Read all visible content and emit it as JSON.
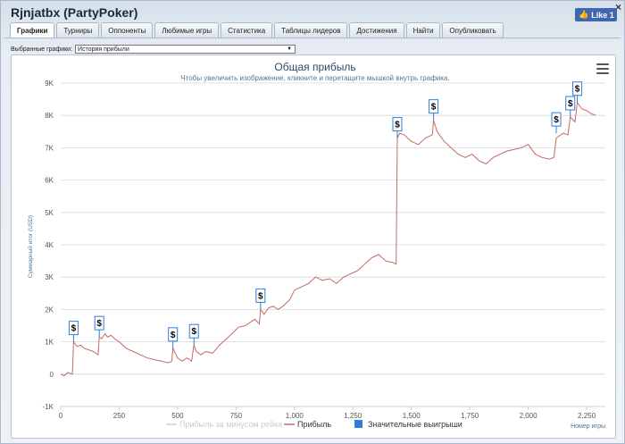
{
  "window": {
    "title": "Rjnjatbx (PartyPoker)",
    "close_label": "×",
    "like_label": "Like 1"
  },
  "tabs": [
    {
      "label": "Графики",
      "active": true
    },
    {
      "label": "Турниры",
      "active": false
    },
    {
      "label": "Оппоненты",
      "active": false
    },
    {
      "label": "Любимые игры",
      "active": false
    },
    {
      "label": "Статистика",
      "active": false
    },
    {
      "label": "Таблицы лидеров",
      "active": false
    },
    {
      "label": "Достижения",
      "active": false
    },
    {
      "label": "Найти",
      "active": false
    },
    {
      "label": "Опубликовать",
      "active": false
    }
  ],
  "selector": {
    "label": "Выбранные графики:",
    "value": "История прибыли"
  },
  "colors": {
    "profit_line": "#c46a64",
    "rake_line": "#cccccc",
    "marker": "#2f7ed8",
    "grid": "#d8d8d8"
  },
  "chart_data": {
    "type": "line",
    "title": "Общая прибыль",
    "subtitle": "Чтобы увеличить изображение, кликните и перетащите мышкой внутрь графика.",
    "xlabel": "Номер игры",
    "ylabel": "Суммарный итог (USD)",
    "xlim": [
      0,
      2330
    ],
    "ylim": [
      -1000,
      9000
    ],
    "x_ticks": [
      0,
      250,
      500,
      750,
      1000,
      1250,
      1500,
      1750,
      2000,
      2250
    ],
    "x_tick_labels": [
      "0",
      "250",
      "500",
      "750",
      "1,000",
      "1,250",
      "1,500",
      "1,750",
      "2,000",
      "2,250"
    ],
    "y_ticks": [
      -1000,
      0,
      1000,
      2000,
      3000,
      4000,
      5000,
      6000,
      7000,
      8000,
      9000
    ],
    "y_tick_labels": [
      "-1K",
      "0",
      "1K",
      "2K",
      "3K",
      "4K",
      "5K",
      "6K",
      "7K",
      "8K",
      "9K"
    ],
    "grid": true,
    "legend_position": "bottom",
    "series": [
      {
        "name": "Прибыль за минусом рейка",
        "values": []
      },
      {
        "name": "Прибыль",
        "x": [
          0,
          15,
          30,
          50,
          55,
          70,
          85,
          100,
          120,
          140,
          160,
          165,
          175,
          190,
          200,
          215,
          230,
          250,
          280,
          310,
          340,
          370,
          400,
          430,
          460,
          475,
          480,
          500,
          520,
          540,
          560,
          570,
          580,
          600,
          620,
          650,
          680,
          710,
          740,
          760,
          790,
          810,
          830,
          850,
          855,
          870,
          890,
          910,
          930,
          950,
          980,
          1000,
          1030,
          1060,
          1090,
          1120,
          1150,
          1180,
          1210,
          1240,
          1270,
          1300,
          1330,
          1360,
          1390,
          1420,
          1435,
          1440,
          1450,
          1470,
          1500,
          1530,
          1560,
          1590,
          1595,
          1610,
          1640,
          1670,
          1700,
          1730,
          1760,
          1790,
          1820,
          1850,
          1880,
          1910,
          1940,
          1970,
          2000,
          2030,
          2060,
          2090,
          2110,
          2120,
          2150,
          2170,
          2180,
          2200,
          2210,
          2230,
          2250,
          2270,
          2290
        ],
        "values": [
          0,
          -50,
          50,
          0,
          1000,
          850,
          900,
          800,
          750,
          700,
          600,
          1150,
          1100,
          1250,
          1150,
          1200,
          1100,
          1000,
          800,
          700,
          600,
          500,
          450,
          400,
          350,
          400,
          800,
          500,
          400,
          500,
          400,
          900,
          700,
          600,
          700,
          650,
          900,
          1100,
          1300,
          1450,
          1500,
          1600,
          1700,
          1550,
          2000,
          1850,
          2050,
          2100,
          2000,
          2100,
          2300,
          2600,
          2700,
          2800,
          3000,
          2900,
          2950,
          2800,
          3000,
          3100,
          3200,
          3400,
          3600,
          3700,
          3500,
          3450,
          3400,
          7300,
          7450,
          7400,
          7200,
          7100,
          7300,
          7400,
          7850,
          7500,
          7200,
          7000,
          6800,
          6700,
          6800,
          6600,
          6500,
          6700,
          6800,
          6900,
          6950,
          7000,
          7100,
          6800,
          6700,
          6650,
          6700,
          7300,
          7450,
          7400,
          7950,
          7800,
          8400,
          8200,
          8150,
          8050,
          8000
        ]
      },
      {
        "name": "Значительные выигрыши",
        "marker_label": "$",
        "x": [
          55,
          165,
          480,
          570,
          855,
          1440,
          1595,
          2120,
          2180,
          2210
        ],
        "values": [
          1000,
          1150,
          800,
          900,
          2000,
          7300,
          7850,
          7450,
          7950,
          8400
        ]
      }
    ]
  }
}
